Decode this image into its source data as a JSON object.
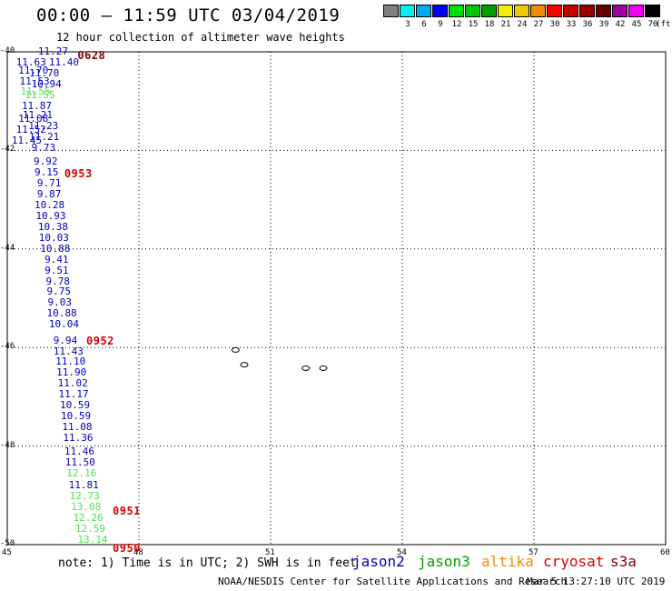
{
  "title": "00:00 – 11:59 UTC 03/04/2019",
  "subtitle": "12 hour collection of altimeter wave heights",
  "color_scale": {
    "unit": "(ft)",
    "swatches": [
      {
        "label": "",
        "color": "#7f7f7f"
      },
      {
        "label": "3",
        "color": "#00f0f0"
      },
      {
        "label": "6",
        "color": "#00aaf0"
      },
      {
        "label": "9",
        "color": "#0000ff"
      },
      {
        "label": "12",
        "color": "#00e000"
      },
      {
        "label": "15",
        "color": "#00c800"
      },
      {
        "label": "18",
        "color": "#00a000"
      },
      {
        "label": "21",
        "color": "#f0f000"
      },
      {
        "label": "24",
        "color": "#f0c800"
      },
      {
        "label": "27",
        "color": "#f08c00"
      },
      {
        "label": "30",
        "color": "#ff0000"
      },
      {
        "label": "33",
        "color": "#c80000"
      },
      {
        "label": "36",
        "color": "#960000"
      },
      {
        "label": "39",
        "color": "#640000"
      },
      {
        "label": "42",
        "color": "#a000a0"
      },
      {
        "label": "45",
        "color": "#f000f0"
      },
      {
        "label": "70",
        "color": "#000000"
      }
    ]
  },
  "map": {
    "lon_range": [
      45,
      60
    ],
    "lat_range": [
      -40,
      -50
    ],
    "lon_ticks": [
      "45",
      "48",
      "51",
      "54",
      "57",
      "60"
    ],
    "lat_ticks": [
      "-40",
      "-42",
      "-44",
      "-46",
      "-48",
      "-50"
    ],
    "gridlines": "dotted"
  },
  "pass_times": [
    {
      "label": "0628",
      "lon": 46.6,
      "lat": -40.05,
      "color": "#800000"
    },
    {
      "label": "0953",
      "lon": 46.3,
      "lat": -42.45,
      "color": "#d40000"
    },
    {
      "label": "0952",
      "lon": 46.8,
      "lat": -45.85,
      "color": "#d40000"
    },
    {
      "label": "0951",
      "lon": 47.4,
      "lat": -49.3,
      "color": "#d40000"
    },
    {
      "label": "0950",
      "lon": 47.4,
      "lat": -50.05,
      "color": "#d40000"
    }
  ],
  "observations": [
    {
      "v": "11.27",
      "lon": 45.7,
      "lat": -40.0,
      "c": "#0000c0"
    },
    {
      "v": "11.40",
      "lon": 45.95,
      "lat": -40.22,
      "c": "#0000c0"
    },
    {
      "v": "11.63",
      "lon": 45.2,
      "lat": -40.22,
      "c": "#0000c0"
    },
    {
      "v": "11.70",
      "lon": 45.5,
      "lat": -40.44,
      "c": "#0000c0"
    },
    {
      "v": "11.70",
      "lon": 45.25,
      "lat": -40.38,
      "c": "#0000c0"
    },
    {
      "v": "11.53",
      "lon": 45.28,
      "lat": -40.6,
      "c": "#0000c0"
    },
    {
      "v": "10.94",
      "lon": 45.55,
      "lat": -40.66,
      "c": "#0000c0"
    },
    {
      "v": "11.55",
      "lon": 45.4,
      "lat": -40.88,
      "c": "#50e050"
    },
    {
      "v": "11.55",
      "lon": 45.3,
      "lat": -40.82,
      "c": "#50e050"
    },
    {
      "v": "11.87",
      "lon": 45.33,
      "lat": -41.1,
      "c": "#0000c0"
    },
    {
      "v": "11.21",
      "lon": 45.35,
      "lat": -41.3,
      "c": "#0000c0"
    },
    {
      "v": "11.08",
      "lon": 45.25,
      "lat": -41.36,
      "c": "#0000c0"
    },
    {
      "v": "11.23",
      "lon": 45.48,
      "lat": -41.52,
      "c": "#0000c0"
    },
    {
      "v": "11.52",
      "lon": 45.2,
      "lat": -41.58,
      "c": "#0000c0"
    },
    {
      "v": "11.21",
      "lon": 45.5,
      "lat": -41.74,
      "c": "#0000c0"
    },
    {
      "v": "11.45",
      "lon": 45.1,
      "lat": -41.8,
      "c": "#0000c0"
    },
    {
      "v": "9.73",
      "lon": 45.55,
      "lat": -41.96,
      "c": "#0000c0"
    },
    {
      "v": "9.92",
      "lon": 45.6,
      "lat": -42.24,
      "c": "#0000c0"
    },
    {
      "v": "9.15",
      "lon": 45.62,
      "lat": -42.46,
      "c": "#0000c0"
    },
    {
      "v": "9.71",
      "lon": 45.68,
      "lat": -42.68,
      "c": "#0000c0"
    },
    {
      "v": "9.87",
      "lon": 45.68,
      "lat": -42.9,
      "c": "#0000c0"
    },
    {
      "v": "10.28",
      "lon": 45.62,
      "lat": -43.12,
      "c": "#0000c0"
    },
    {
      "v": "10.93",
      "lon": 45.65,
      "lat": -43.34,
      "c": "#0000c0"
    },
    {
      "v": "10.38",
      "lon": 45.7,
      "lat": -43.56,
      "c": "#0000c0"
    },
    {
      "v": "10.03",
      "lon": 45.72,
      "lat": -43.78,
      "c": "#0000c0"
    },
    {
      "v": "10.88",
      "lon": 45.75,
      "lat": -44.0,
      "c": "#0000c0"
    },
    {
      "v": "9.41",
      "lon": 45.85,
      "lat": -44.22,
      "c": "#0000c0"
    },
    {
      "v": "9.51",
      "lon": 45.85,
      "lat": -44.44,
      "c": "#0000c0"
    },
    {
      "v": "9.78",
      "lon": 45.88,
      "lat": -44.66,
      "c": "#0000c0"
    },
    {
      "v": "9.75",
      "lon": 45.9,
      "lat": -44.88,
      "c": "#0000c0"
    },
    {
      "v": "9.03",
      "lon": 45.92,
      "lat": -45.1,
      "c": "#0000c0"
    },
    {
      "v": "10.88",
      "lon": 45.9,
      "lat": -45.32,
      "c": "#0000c0"
    },
    {
      "v": "10.04",
      "lon": 45.95,
      "lat": -45.54,
      "c": "#0000c0"
    },
    {
      "v": "9.94",
      "lon": 46.05,
      "lat": -45.86,
      "c": "#0000c0"
    },
    {
      "v": "11.43",
      "lon": 46.05,
      "lat": -46.08,
      "c": "#0000c0"
    },
    {
      "v": "11.10",
      "lon": 46.1,
      "lat": -46.3,
      "c": "#0000c0"
    },
    {
      "v": "11.90",
      "lon": 46.12,
      "lat": -46.52,
      "c": "#0000c0"
    },
    {
      "v": "11.02",
      "lon": 46.15,
      "lat": -46.74,
      "c": "#0000c0"
    },
    {
      "v": "11.17",
      "lon": 46.17,
      "lat": -46.96,
      "c": "#0000c0"
    },
    {
      "v": "10.59",
      "lon": 46.2,
      "lat": -47.18,
      "c": "#0000c0"
    },
    {
      "v": "10.59",
      "lon": 46.22,
      "lat": -47.4,
      "c": "#0000c0"
    },
    {
      "v": "11.08",
      "lon": 46.25,
      "lat": -47.62,
      "c": "#0000c0"
    },
    {
      "v": "11.36",
      "lon": 46.27,
      "lat": -47.84,
      "c": "#0000c0"
    },
    {
      "v": "11.46",
      "lon": 46.3,
      "lat": -48.12,
      "c": "#0000c0"
    },
    {
      "v": "11.50",
      "lon": 46.32,
      "lat": -48.34,
      "c": "#0000c0"
    },
    {
      "v": "12.16",
      "lon": 46.35,
      "lat": -48.56,
      "c": "#50e050"
    },
    {
      "v": "11.81",
      "lon": 46.4,
      "lat": -48.8,
      "c": "#0000c0"
    },
    {
      "v": "12.73",
      "lon": 46.42,
      "lat": -49.02,
      "c": "#50e050"
    },
    {
      "v": "13.08",
      "lon": 46.45,
      "lat": -49.24,
      "c": "#50e050"
    },
    {
      "v": "12.26",
      "lon": 46.5,
      "lat": -49.46,
      "c": "#50e050"
    },
    {
      "v": "12.59",
      "lon": 46.55,
      "lat": -49.68,
      "c": "#50e050"
    },
    {
      "v": "13.14",
      "lon": 46.6,
      "lat": -49.9,
      "c": "#50e050"
    }
  ],
  "islands": [
    {
      "lon": 50.2,
      "lat": -46.05
    },
    {
      "lon": 50.4,
      "lat": -46.35
    },
    {
      "lon": 51.8,
      "lat": -46.42
    },
    {
      "lon": 52.2,
      "lat": -46.42
    }
  ],
  "note": "note:  1) Time is in UTC; 2) SWH is in feet",
  "satellites": [
    {
      "name": "jason2",
      "color": "#0000c0"
    },
    {
      "name": "jason3",
      "color": "#00a000"
    },
    {
      "name": "altika",
      "color": "#f08c00"
    },
    {
      "name": "cryosat",
      "color": "#d40000"
    },
    {
      "name": "s3a",
      "color": "#800000"
    }
  ],
  "footer": "NOAA/NESDIS Center for Satellite Applications and Research",
  "stamp": "Mar  5 13:27:10 UTC 2019"
}
